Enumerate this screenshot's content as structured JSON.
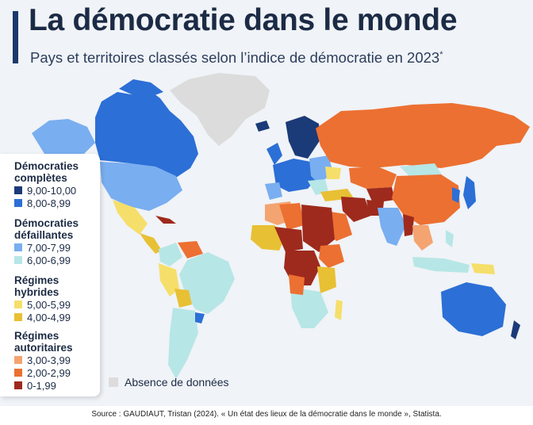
{
  "title": "La démocratie dans le monde",
  "subtitle": "Pays et territoires classés selon l’indice de démocratie en 2023",
  "subtitle_mark": "*",
  "source": "Source : GAUDIAUT, Tristan (2024). « Un état des lieux de la démocratie dans le monde », Statista.",
  "legend": {
    "groups": [
      {
        "title_line1": "Démocraties",
        "title_line2": "complètes",
        "items": [
          {
            "label": "9,00-10,00",
            "color": "#1b3a78"
          },
          {
            "label": "8,00-8,99",
            "color": "#2c6fd6"
          }
        ]
      },
      {
        "title_line1": "Démocraties",
        "title_line2": "défaillantes",
        "items": [
          {
            "label": "7,00-7,99",
            "color": "#79aef0"
          },
          {
            "label": "6,00-6,99",
            "color": "#b7e6e6"
          }
        ]
      },
      {
        "title_line1": "Régimes",
        "title_line2": "hybrides",
        "items": [
          {
            "label": "5,00-5,99",
            "color": "#f5df6a"
          },
          {
            "label": "4,00-4,99",
            "color": "#e8c034"
          }
        ]
      },
      {
        "title_line1": "Régimes",
        "title_line2": "autoritaires",
        "items": [
          {
            "label": "3,00-3,99",
            "color": "#f4a470"
          },
          {
            "label": "2,00-2,99",
            "color": "#ec7031"
          },
          {
            "label": "0-1,99",
            "color": "#9e2a1d"
          }
        ]
      }
    ],
    "no_data": {
      "label": "Absence de données",
      "color": "#dcdcdc"
    }
  },
  "colors": {
    "accent": "#1b3a6b",
    "background": "#f0f3f7",
    "title": "#1c2b45"
  }
}
